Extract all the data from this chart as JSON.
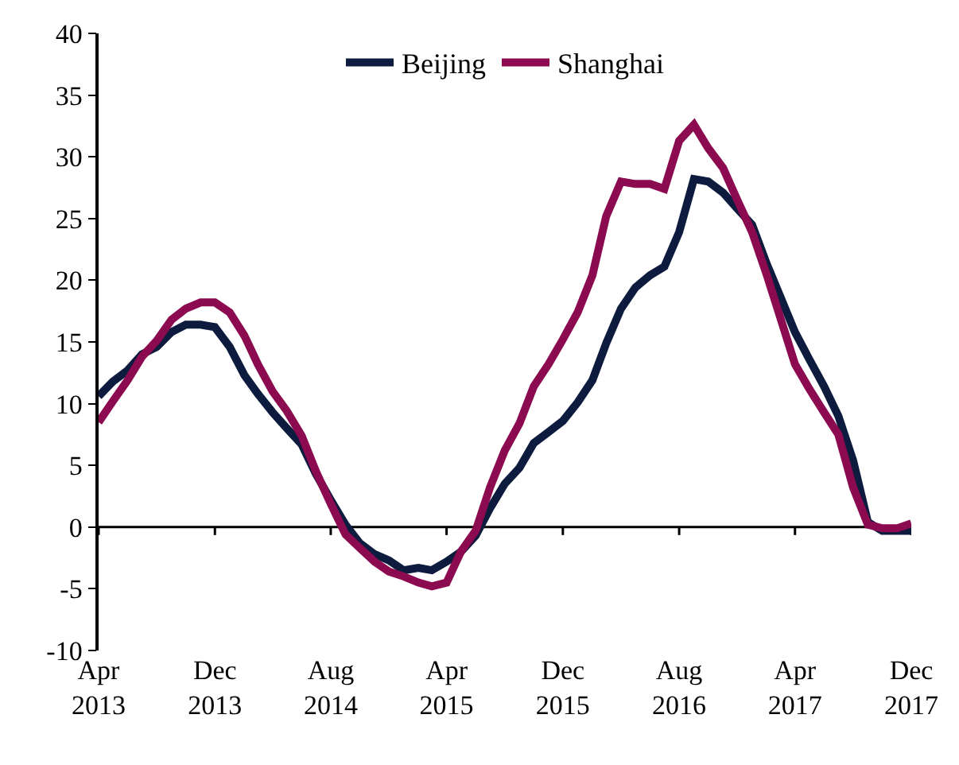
{
  "chart_data": {
    "type": "line",
    "x": [
      "2013-04",
      "2013-05",
      "2013-06",
      "2013-07",
      "2013-08",
      "2013-09",
      "2013-10",
      "2013-11",
      "2013-12",
      "2014-01",
      "2014-02",
      "2014-03",
      "2014-04",
      "2014-05",
      "2014-06",
      "2014-07",
      "2014-08",
      "2014-09",
      "2014-10",
      "2014-11",
      "2014-12",
      "2015-01",
      "2015-02",
      "2015-03",
      "2015-04",
      "2015-05",
      "2015-06",
      "2015-07",
      "2015-08",
      "2015-09",
      "2015-10",
      "2015-11",
      "2015-12",
      "2016-01",
      "2016-02",
      "2016-03",
      "2016-04",
      "2016-05",
      "2016-06",
      "2016-07",
      "2016-08",
      "2016-09",
      "2016-10",
      "2016-11",
      "2016-12",
      "2017-01",
      "2017-02",
      "2017-03",
      "2017-04",
      "2017-05",
      "2017-06",
      "2017-07",
      "2017-08",
      "2017-09",
      "2017-10",
      "2017-11",
      "2017-12"
    ],
    "series": [
      {
        "name": "Beijing",
        "color": "#0d1b3e",
        "values": [
          10.6,
          11.8,
          12.7,
          14.0,
          14.6,
          15.8,
          16.4,
          16.4,
          16.2,
          14.6,
          12.3,
          10.8,
          9.3,
          8.0,
          6.7,
          4.3,
          2.2,
          0.2,
          -1.3,
          -2.2,
          -2.7,
          -3.5,
          -3.3,
          -3.5,
          -2.8,
          -2.0,
          -0.7,
          1.5,
          3.5,
          4.8,
          6.8,
          7.7,
          8.6,
          10.1,
          11.9,
          14.9,
          17.7,
          19.4,
          20.4,
          21.1,
          23.9,
          28.2,
          28.0,
          27.1,
          25.8,
          24.5,
          21.3,
          18.7,
          15.8,
          13.6,
          11.4,
          9.0,
          5.4,
          0.4,
          -0.3,
          -0.3,
          -0.3
        ]
      },
      {
        "name": "Shanghai",
        "color": "#8b0a50",
        "values": [
          8.5,
          10.2,
          11.9,
          13.8,
          15.1,
          16.8,
          17.7,
          18.2,
          18.2,
          17.4,
          15.5,
          13.2,
          11.0,
          9.4,
          7.4,
          4.5,
          1.9,
          -0.6,
          -1.7,
          -2.8,
          -3.6,
          -4.0,
          -4.5,
          -4.8,
          -4.5,
          -2.0,
          -0.3,
          3.2,
          6.2,
          8.4,
          11.4,
          13.2,
          15.2,
          17.4,
          20.4,
          25.2,
          28.0,
          27.8,
          27.8,
          27.4,
          31.3,
          32.6,
          30.7,
          29.1,
          26.5,
          23.9,
          20.4,
          17.0,
          13.2,
          11.2,
          9.3,
          7.5,
          3.2,
          0.2,
          -0.1,
          -0.1,
          0.3
        ]
      }
    ],
    "xlim": [
      "2013-04",
      "2017-12"
    ],
    "xticks": [
      {
        "value": "2013-04",
        "label": "Apr\n2013"
      },
      {
        "value": "2013-12",
        "label": "Dec\n2013"
      },
      {
        "value": "2014-08",
        "label": "Aug\n2014"
      },
      {
        "value": "2015-04",
        "label": "Apr\n2015"
      },
      {
        "value": "2015-12",
        "label": "Dec\n2015"
      },
      {
        "value": "2016-08",
        "label": "Aug\n2016"
      },
      {
        "value": "2017-04",
        "label": "Apr\n2017"
      },
      {
        "value": "2017-12",
        "label": "Dec\n2017"
      }
    ],
    "ylim": [
      -10,
      40
    ],
    "yticks": [
      -10,
      -5,
      0,
      5,
      10,
      15,
      20,
      25,
      30,
      35,
      40
    ],
    "legend": "top",
    "marker": "none",
    "line_style": "solid"
  }
}
